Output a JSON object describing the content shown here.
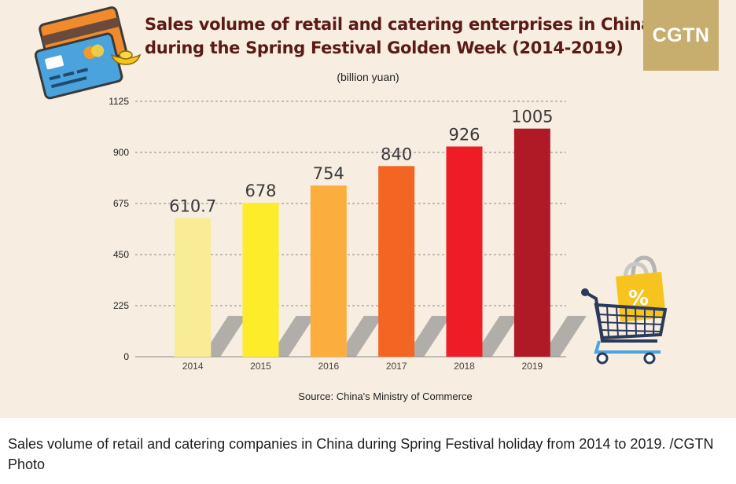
{
  "header": {
    "title_line1": "Sales volume of retail and catering enterprises in China",
    "title_line2": "during the Spring Festival Golden Week (2014-2019)",
    "logo": "CGTN"
  },
  "icons": [
    "credit-cards-icon",
    "gold-ingot-icon",
    "shopping-bag-icon",
    "shopping-cart-icon"
  ],
  "chart_data": {
    "type": "bar",
    "ylabel": "(billion yuan)",
    "categories": [
      "2014",
      "2015",
      "2016",
      "2017",
      "2018",
      "2019"
    ],
    "values": [
      610.7,
      678,
      754,
      840,
      926,
      1005
    ],
    "data_labels": [
      "610.7",
      "678",
      "754",
      "840",
      "926",
      "1005"
    ],
    "colors": [
      "#f8ec97",
      "#fcec2a",
      "#fbae3d",
      "#f26522",
      "#ee1c24",
      "#b01a27"
    ],
    "ylim": [
      0,
      1125
    ],
    "yticks": [
      0,
      225,
      450,
      675,
      900,
      1125
    ],
    "grid": true,
    "source": "Source: China's Ministry of Commerce"
  },
  "caption": "Sales volume of retail and catering companies in China during Spring Festival holiday from 2014 to 2019. /CGTN Photo"
}
